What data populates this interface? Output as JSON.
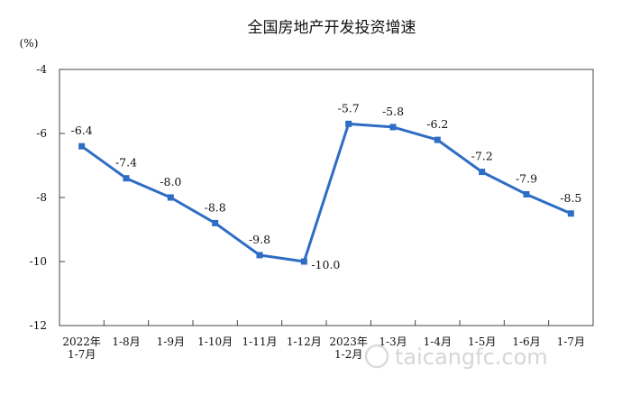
{
  "chart_data": {
    "type": "line",
    "title": "全国房地产开发投资增速",
    "unit_label": "(%)",
    "categories": [
      [
        "2022年",
        "1-7月"
      ],
      [
        "1-8月"
      ],
      [
        "1-9月"
      ],
      [
        "1-10月"
      ],
      [
        "1-11月"
      ],
      [
        "1-12月"
      ],
      [
        "2023年",
        "1-2月"
      ],
      [
        "1-3月"
      ],
      [
        "1-4月"
      ],
      [
        "1-5月"
      ],
      [
        "1-6月"
      ],
      [
        "1-7月"
      ]
    ],
    "series": [
      {
        "values": [
          -6.4,
          -7.4,
          -8.0,
          -8.8,
          -9.8,
          -10.0,
          -5.7,
          -5.8,
          -6.2,
          -7.2,
          -7.9,
          -8.5
        ]
      }
    ],
    "data_labels": [
      "-6.4",
      "-7.4",
      "-8.0",
      "-8.8",
      "-9.8",
      "-10.0",
      "-5.7",
      "-5.8",
      "-6.2",
      "-7.2",
      "-7.9",
      "-8.5"
    ],
    "ylim": [
      -12,
      -4
    ],
    "yticks": [
      -12,
      -10,
      -8,
      -6,
      -4
    ],
    "ytick_labels": [
      "-12",
      "-10",
      "-8",
      "-6",
      "-4"
    ],
    "grid": false,
    "line_color": "#2e6dc4"
  },
  "watermark": "taicangfc.com"
}
